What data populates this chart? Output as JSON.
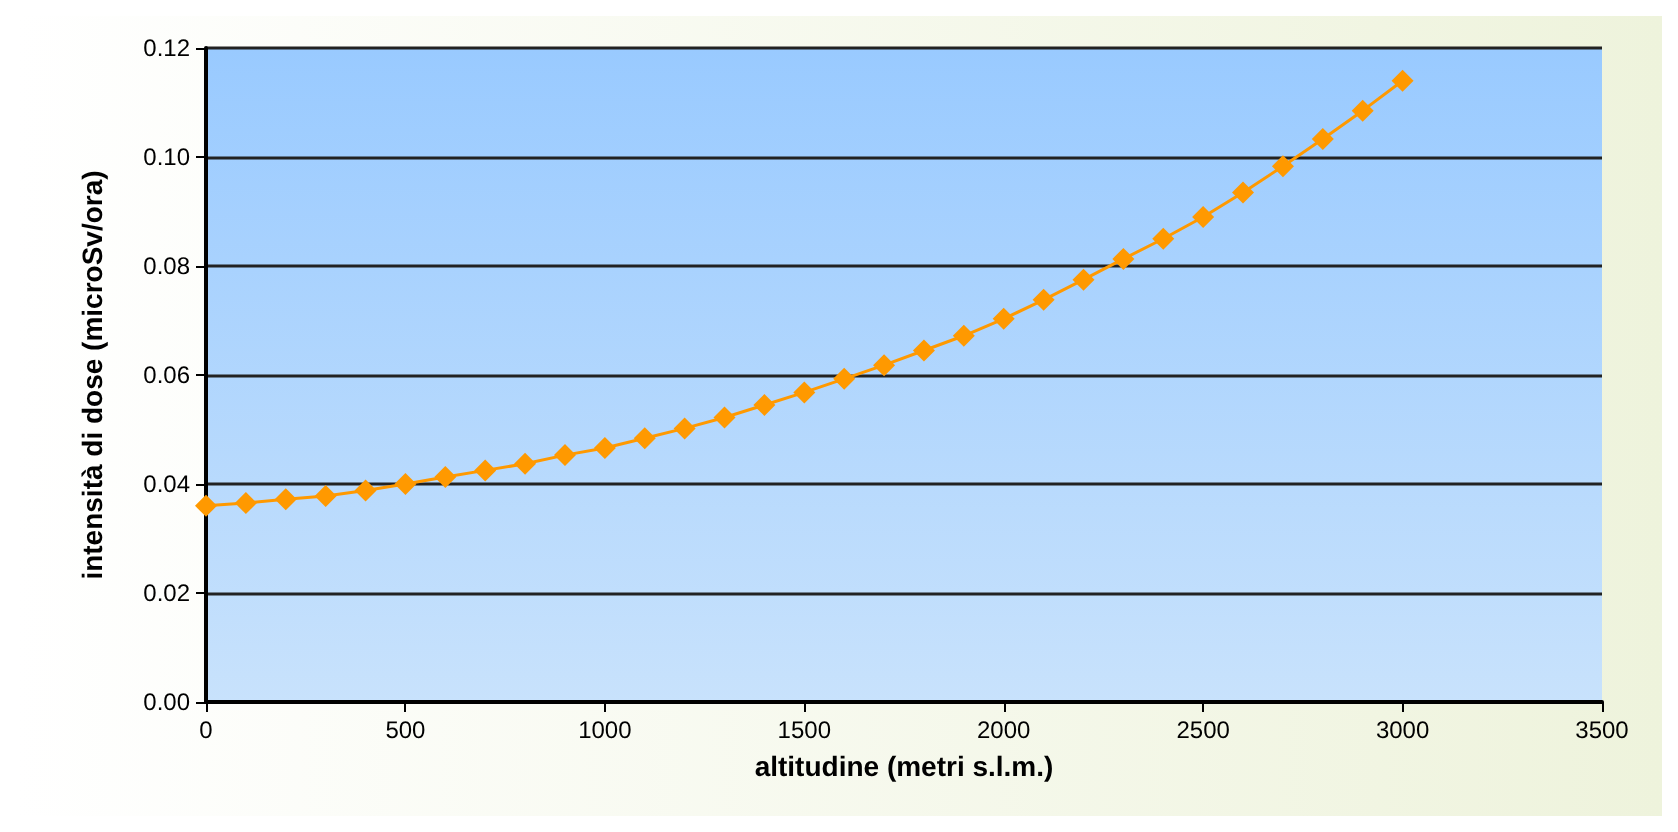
{
  "chart_data": {
    "type": "line",
    "xlabel": "altitudine (metri s.l.m.)",
    "ylabel": "intensità di dose (microSv/ora)",
    "x": [
      0,
      100,
      200,
      300,
      400,
      500,
      600,
      700,
      800,
      900,
      1000,
      1100,
      1200,
      1300,
      1400,
      1500,
      1600,
      1700,
      1800,
      1900,
      2000,
      2100,
      2200,
      2300,
      2400,
      2500,
      2600,
      2700,
      2800,
      2900,
      3000
    ],
    "series": [
      {
        "color": "#ff9900",
        "values": [
          0.036,
          0.0365,
          0.0372,
          0.0378,
          0.0388,
          0.04,
          0.0413,
          0.0425,
          0.0437,
          0.0453,
          0.0466,
          0.0484,
          0.0502,
          0.0522,
          0.0545,
          0.0568,
          0.0593,
          0.0618,
          0.0645,
          0.0672,
          0.0703,
          0.0738,
          0.0775,
          0.0813,
          0.085,
          0.089,
          0.0935,
          0.0983,
          0.1033,
          0.1085,
          0.114
        ]
      }
    ],
    "xlim": [
      0,
      3500
    ],
    "xticks": [
      0,
      500,
      1000,
      1500,
      2000,
      2500,
      3000,
      3500
    ],
    "ylim": [
      0,
      0.12
    ],
    "yticks": [
      {
        "value": 0,
        "label": "0.00"
      },
      {
        "value": 0.02,
        "label": "0.02"
      },
      {
        "value": 0.04,
        "label": "0.04"
      },
      {
        "value": 0.06,
        "label": "0.06"
      },
      {
        "value": 0.08,
        "label": "0.08"
      },
      {
        "value": 0.1,
        "label": "0.10"
      },
      {
        "value": 0.12,
        "label": "0.12"
      }
    ],
    "grid": "y",
    "marker": "diamond",
    "line_style": "solid"
  }
}
